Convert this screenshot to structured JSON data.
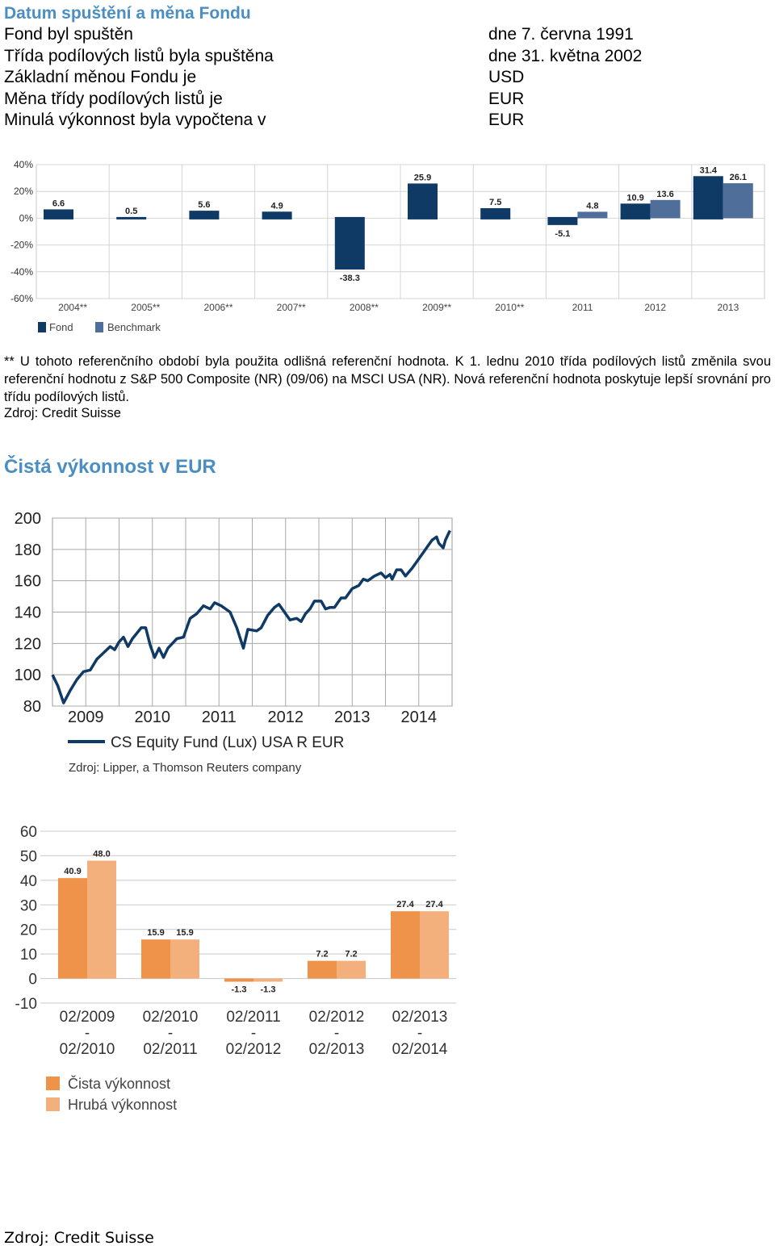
{
  "section1": {
    "title": "Datum spuštění a měna Fondu",
    "rows": [
      {
        "label": "Fond byl spuštěn",
        "value": "dne 7. června 1991"
      },
      {
        "label": "Třída podílových listů byla spuštěna",
        "value": "dne 31. května 2002"
      },
      {
        "label": "Základní měnou Fondu je",
        "value": "USD"
      },
      {
        "label": "Měna třídy podílových listů je",
        "value": "EUR"
      },
      {
        "label": "Minulá výkonnost byla vypočtena v",
        "value": "EUR"
      }
    ]
  },
  "note": {
    "text": "** U tohoto referenčního období byla použita odlišná referenční hodnota. K 1. lednu 2010 třída podílových listů změnila svou referenční hodnotu z S&P 500 Composite (NR) (09/06) na MSCI USA (NR). Nová referenční hodnota poskytuje lepší srovnání pro třídu podílových listů.",
    "source": "Zdroj: Credit Suisse"
  },
  "section2": {
    "title": "Čistá výkonnost v EUR"
  },
  "footer": {
    "source": "Zdroj: Credit Suisse"
  },
  "colors": {
    "fund": "#0f3a66",
    "benchmark": "#4f6f9a",
    "line": "#0f3a66",
    "net": "#ef934a",
    "gross": "#f4b07c",
    "heading": "#4a8ec2"
  },
  "chart_data": [
    {
      "type": "bar",
      "categories": [
        "2004**",
        "2005**",
        "2006**",
        "2007**",
        "2008**",
        "2009**",
        "2010**",
        "2011",
        "2012",
        "2013"
      ],
      "series": [
        {
          "name": "Fond",
          "values": [
            6.6,
            0.5,
            5.6,
            4.9,
            -38.3,
            25.9,
            7.5,
            -5.1,
            10.9,
            31.4
          ]
        },
        {
          "name": "Benchmark",
          "values": [
            null,
            null,
            null,
            null,
            null,
            null,
            null,
            4.8,
            13.6,
            26.1
          ]
        }
      ],
      "value_labels": [
        "6.6",
        "0.5",
        "5.6",
        "4.9",
        "-38.3",
        "25.9",
        "7.5",
        "-5.1",
        "10.9",
        "31.4"
      ],
      "benchmark_labels": [
        "",
        "",
        "",
        "",
        "",
        "",
        "",
        "4.8",
        "13.6",
        "26.1"
      ],
      "yticks": [
        "40%",
        "20%",
        "0%",
        "-20%",
        "-40%",
        "-60%"
      ],
      "ylim": [
        -60,
        40
      ],
      "grid": true,
      "legend_position": "bottom-left"
    },
    {
      "type": "line",
      "x_labels": [
        "2009",
        "2010",
        "2011",
        "2012",
        "2013",
        "2014"
      ],
      "yticks": [
        "200",
        "180",
        "160",
        "140",
        "120",
        "100",
        "80"
      ],
      "ylim": [
        80,
        200
      ],
      "series": [
        {
          "name": "CS Equity Fund (Lux) USA R EUR",
          "points": [
            [
              0.0,
              100
            ],
            [
              0.12,
              93
            ],
            [
              0.25,
              82
            ],
            [
              0.4,
              90
            ],
            [
              0.55,
              97
            ],
            [
              0.7,
              102
            ],
            [
              0.85,
              103
            ],
            [
              1.0,
              110
            ],
            [
              1.15,
              114
            ],
            [
              1.3,
              118
            ],
            [
              1.4,
              116
            ],
            [
              1.5,
              121
            ],
            [
              1.6,
              124
            ],
            [
              1.7,
              118
            ],
            [
              1.8,
              123
            ],
            [
              2.0,
              130
            ],
            [
              2.1,
              130
            ],
            [
              2.2,
              119
            ],
            [
              2.3,
              111
            ],
            [
              2.4,
              117
            ],
            [
              2.5,
              111
            ],
            [
              2.6,
              117
            ],
            [
              2.8,
              123
            ],
            [
              2.95,
              124
            ],
            [
              3.1,
              136
            ],
            [
              3.25,
              139
            ],
            [
              3.4,
              144
            ],
            [
              3.55,
              142
            ],
            [
              3.65,
              146
            ],
            [
              3.8,
              144
            ],
            [
              4.0,
              140
            ],
            [
              4.15,
              130
            ],
            [
              4.3,
              117
            ],
            [
              4.4,
              129
            ],
            [
              4.6,
              128
            ],
            [
              4.7,
              130
            ],
            [
              4.85,
              138
            ],
            [
              5.0,
              143
            ],
            [
              5.1,
              145
            ],
            [
              5.2,
              141
            ],
            [
              5.35,
              135
            ],
            [
              5.5,
              136
            ],
            [
              5.6,
              134
            ],
            [
              5.7,
              139
            ],
            [
              5.8,
              142
            ],
            [
              5.9,
              147
            ],
            [
              6.05,
              147
            ],
            [
              6.15,
              142
            ],
            [
              6.25,
              143
            ],
            [
              6.35,
              143
            ],
            [
              6.5,
              149
            ],
            [
              6.6,
              149
            ],
            [
              6.75,
              155
            ],
            [
              6.9,
              157
            ],
            [
              7.0,
              161
            ],
            [
              7.1,
              160
            ],
            [
              7.25,
              163
            ],
            [
              7.4,
              165
            ],
            [
              7.5,
              162
            ],
            [
              7.6,
              164
            ],
            [
              7.65,
              161
            ],
            [
              7.75,
              167
            ],
            [
              7.85,
              167
            ],
            [
              7.95,
              163
            ],
            [
              8.1,
              168
            ],
            [
              8.25,
              174
            ],
            [
              8.35,
              178
            ],
            [
              8.45,
              182
            ],
            [
              8.55,
              186
            ],
            [
              8.65,
              188
            ],
            [
              8.7,
              184
            ],
            [
              8.8,
              181
            ],
            [
              8.85,
              186
            ],
            [
              8.95,
              192
            ]
          ]
        }
      ],
      "source": "Zdroj: Lipper, a Thomson Reuters company",
      "grid": true,
      "legend_position": "bottom"
    },
    {
      "type": "bar",
      "categories": [
        [
          "02/2009",
          "-",
          "02/2010"
        ],
        [
          "02/2010",
          "-",
          "02/2011"
        ],
        [
          "02/2011",
          "-",
          "02/2012"
        ],
        [
          "02/2012",
          "-",
          "02/2013"
        ],
        [
          "02/2013",
          "-",
          "02/2014"
        ]
      ],
      "series": [
        {
          "name": "Čista výkonnost",
          "values": [
            40.9,
            15.9,
            -1.3,
            7.2,
            27.4
          ]
        },
        {
          "name": "Hrubá výkonnost",
          "values": [
            48.0,
            15.9,
            -1.3,
            7.2,
            27.4
          ]
        }
      ],
      "net_labels": [
        "40.9",
        "15.9",
        "-1.3",
        "7.2",
        "27.4"
      ],
      "gross_labels": [
        "48.0",
        "15.9",
        "-1.3",
        "7.2",
        "27.4"
      ],
      "yticks": [
        "60",
        "50",
        "40",
        "30",
        "20",
        "10",
        "0",
        "-10"
      ],
      "ylim": [
        -10,
        60
      ],
      "grid": true,
      "legend_position": "bottom-left"
    }
  ]
}
